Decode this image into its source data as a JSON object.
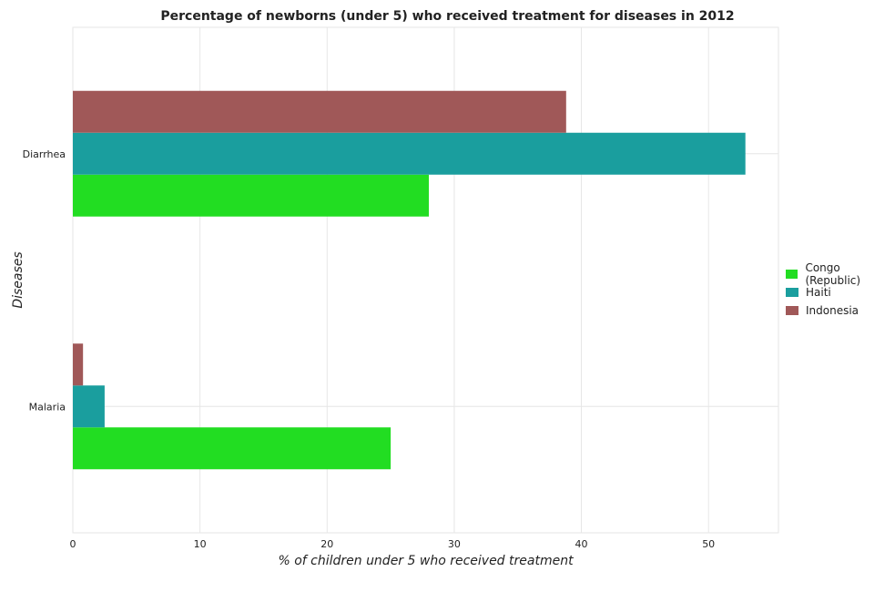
{
  "chart_data": {
    "type": "bar",
    "orientation": "horizontal",
    "title": "Percentage of newborns (under 5) who received treatment for diseases in 2012",
    "xlabel": "% of children under 5 who received treatment",
    "ylabel": "Diseases",
    "categories": [
      "Diarrhea",
      "Malaria"
    ],
    "series": [
      {
        "name": "Congo (Republic)",
        "color": "#22dd22",
        "values": [
          28.0,
          25.0
        ]
      },
      {
        "name": "Haiti",
        "color": "#1a9e9e",
        "values": [
          52.9,
          2.5
        ]
      },
      {
        "name": "Indonesia",
        "color": "#a05858",
        "values": [
          38.8,
          0.8
        ]
      }
    ],
    "xlim": [
      0,
      55.5
    ],
    "xticks": [
      0,
      10,
      20,
      30,
      40,
      50
    ],
    "grid": true,
    "legend_position": "right"
  }
}
